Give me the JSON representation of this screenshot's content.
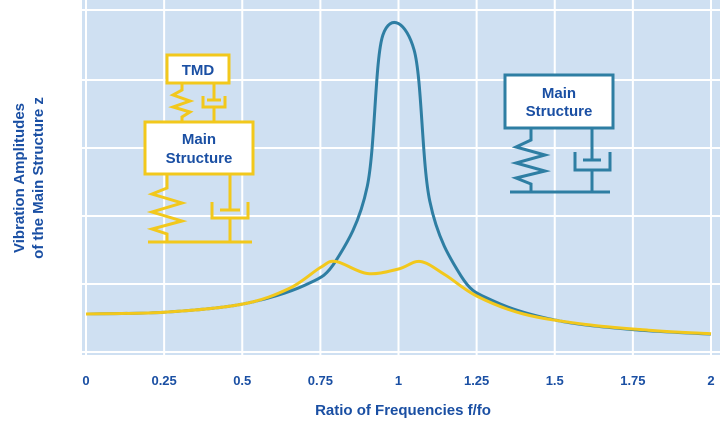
{
  "chart_data": {
    "type": "line",
    "xlabel": "Ratio of Frequencies  f/fo",
    "ylabel_line1": "Vibration Amplitudes",
    "ylabel_line2": "of the Main Structure  z",
    "x_ticks": [
      "0",
      "0.25",
      "0.5",
      "0.75",
      "1",
      "1.25",
      "1.5",
      "1.75",
      "2"
    ],
    "xlim": [
      0,
      2
    ],
    "grid": true,
    "series": [
      {
        "color": "#2e7ea3",
        "x": [
          0,
          0.25,
          0.5,
          0.7,
          0.8,
          0.9,
          0.95,
          1.05,
          1.1,
          1.2,
          1.3,
          1.5,
          1.75,
          2
        ],
        "y": [
          1.0,
          1.06,
          1.33,
          1.96,
          2.78,
          5.26,
          10.3,
          9.8,
          4.76,
          2.27,
          1.45,
          0.8,
          0.48,
          0.33
        ]
      },
      {
        "color": "#f2c81c",
        "x": [
          0,
          0.25,
          0.5,
          0.65,
          0.75,
          0.8,
          0.9,
          1.0,
          1.07,
          1.15,
          1.25,
          1.4,
          1.6,
          1.8,
          2
        ],
        "y": [
          1.0,
          1.06,
          1.33,
          1.85,
          2.55,
          2.75,
          2.35,
          2.5,
          2.75,
          2.3,
          1.6,
          1.0,
          0.65,
          0.46,
          0.34
        ]
      }
    ]
  },
  "diagram_tmd": {
    "tmd_label": "TMD",
    "main_label_line1": "Main",
    "main_label_line2": "Structure",
    "color": "#f2c81c"
  },
  "diagram_main": {
    "label_line1": "Main",
    "label_line2": "Structure",
    "color": "#2e7ea3"
  },
  "colors": {
    "background": "#cfe0f2",
    "grid": "#ffffff",
    "text": "#1a4fa3"
  }
}
